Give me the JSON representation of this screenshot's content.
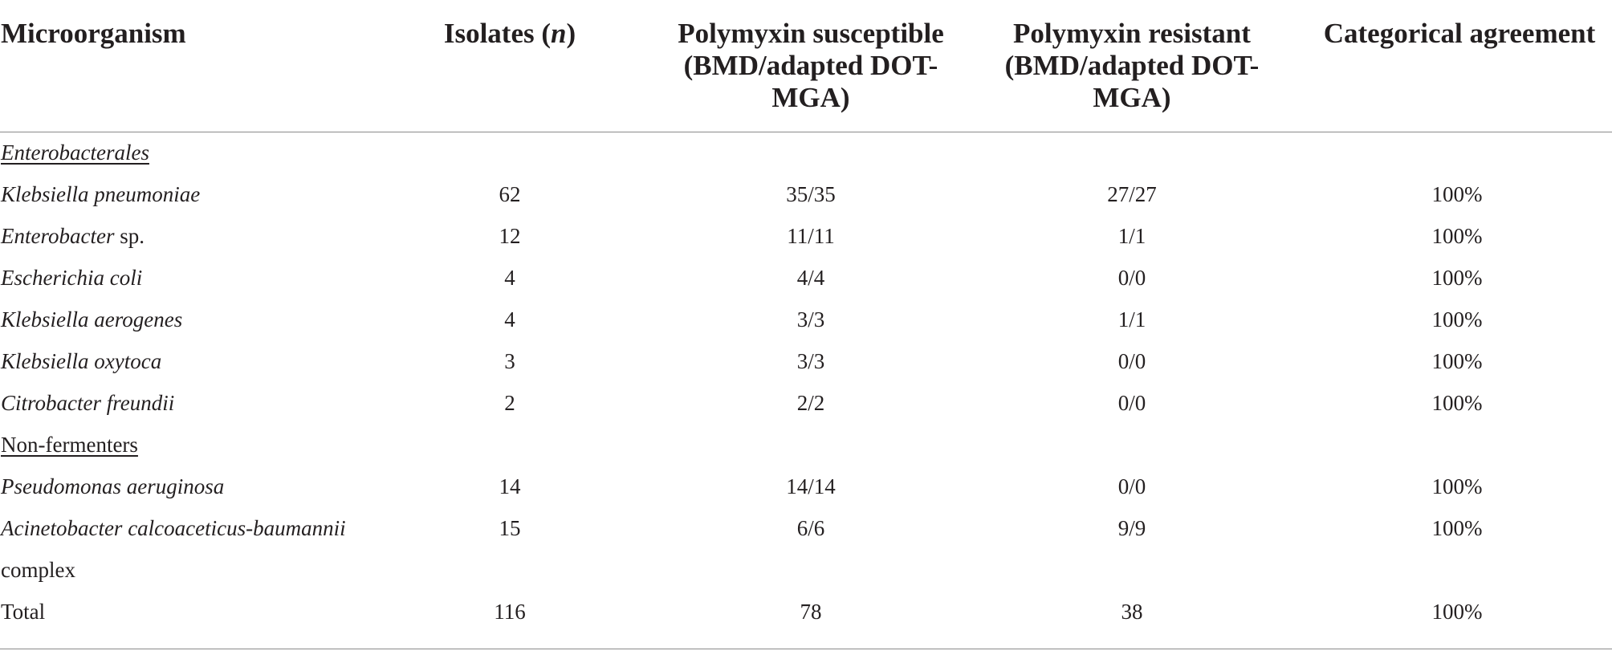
{
  "headers": {
    "microorganism": "Microorganism",
    "isolates_prefix": "Isolates (",
    "isolates_n": "n",
    "isolates_suffix": ")",
    "susceptible": "Polymyxin susceptible (BMD/adapted DOT-MGA)",
    "resistant": "Polymyxin resistant (BMD/adapted DOT-MGA)",
    "agreement": "Categorical agreement"
  },
  "groups": {
    "enterobacterales": "Enterobacterales",
    "nonfermenters": "Non-fermenters"
  },
  "rows": [
    {
      "name": "Klebsiella pneumoniae",
      "isolates": "62",
      "susceptible": "35/35",
      "resistant": "27/27",
      "agreement": "100%"
    },
    {
      "name_italic": "Enterobacter",
      "name_rest": " sp.",
      "isolates": "12",
      "susceptible": "11/11",
      "resistant": "1/1",
      "agreement": "100%"
    },
    {
      "name": "Escherichia coli",
      "isolates": "4",
      "susceptible": "4/4",
      "resistant": "0/0",
      "agreement": "100%"
    },
    {
      "name": "Klebsiella aerogenes",
      "isolates": "4",
      "susceptible": "3/3",
      "resistant": "1/1",
      "agreement": "100%"
    },
    {
      "name": "Klebsiella oxytoca",
      "isolates": "3",
      "susceptible": "3/3",
      "resistant": "0/0",
      "agreement": "100%"
    },
    {
      "name": "Citrobacter freundii",
      "isolates": "2",
      "susceptible": "2/2",
      "resistant": "0/0",
      "agreement": "100%"
    },
    {
      "name": "Pseudomonas aeruginosa",
      "isolates": "14",
      "susceptible": "14/14",
      "resistant": "0/0",
      "agreement": "100%"
    },
    {
      "name_italic": "Acinetobacter calcoaceticus-baumannii",
      "name_line2": "complex",
      "isolates": "15",
      "susceptible": "6/6",
      "resistant": "9/9",
      "agreement": "100%"
    }
  ],
  "total": {
    "label": "Total",
    "isolates": "116",
    "susceptible": "78",
    "resistant": "38",
    "agreement": "100%"
  }
}
